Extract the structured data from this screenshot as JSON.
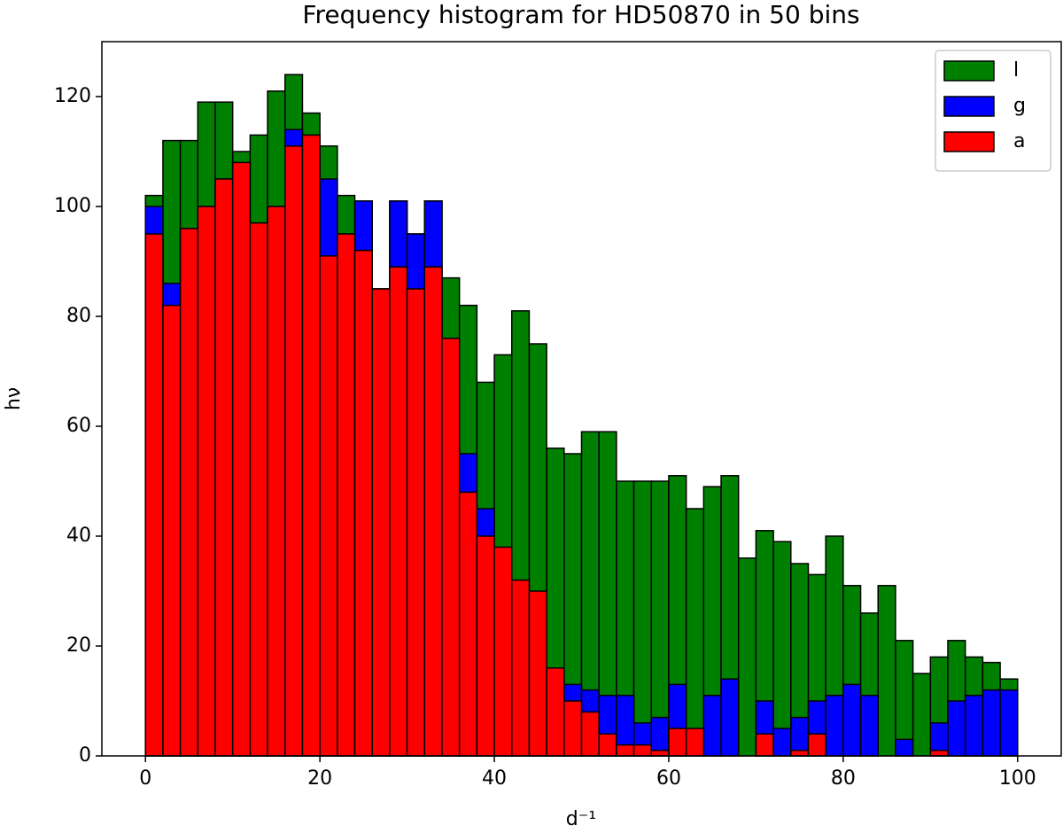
{
  "chart_data": {
    "type": "histogram",
    "title": "Frequency histogram for HD50870 in 50 bins",
    "x_label": "d⁻¹",
    "y_label": "hν",
    "bins": [
      0,
      2,
      4,
      6,
      8,
      10,
      12,
      14,
      16,
      18,
      20,
      22,
      24,
      26,
      28,
      30,
      32,
      34,
      36,
      38,
      40,
      42,
      44,
      46,
      48,
      50,
      52,
      54,
      56,
      58,
      60,
      62,
      64,
      66,
      68,
      70,
      72,
      74,
      76,
      78,
      80,
      82,
      84,
      86,
      88,
      90,
      92,
      94,
      96,
      98,
      100
    ],
    "series": [
      {
        "name": "l",
        "color": "#008000",
        "values": [
          102,
          112,
          112,
          119,
          119,
          110,
          113,
          121,
          124,
          117,
          111,
          102,
          101,
          85,
          101,
          95,
          101,
          87,
          82,
          68,
          73,
          81,
          75,
          56,
          55,
          59,
          59,
          50,
          50,
          50,
          51,
          45,
          49,
          51,
          36,
          41,
          39,
          35,
          33,
          40,
          31,
          26,
          31,
          21,
          15,
          18,
          21,
          18,
          17,
          14
        ]
      },
      {
        "name": "g",
        "color": "#0000ff",
        "values": [
          100,
          86,
          96,
          100,
          105,
          108,
          97,
          100,
          114,
          113,
          105,
          95,
          101,
          85,
          101,
          95,
          101,
          76,
          55,
          45,
          37,
          30,
          13,
          15,
          13,
          12,
          11,
          11,
          6,
          7,
          13,
          0,
          11,
          14,
          0,
          10,
          5,
          7,
          10,
          11,
          13,
          11,
          0,
          3,
          0,
          6,
          10,
          11,
          12,
          12
        ]
      },
      {
        "name": "a",
        "color": "#ff0000",
        "values": [
          95,
          82,
          96,
          100,
          105,
          108,
          97,
          100,
          111,
          113,
          91,
          95,
          92,
          85,
          89,
          85,
          89,
          76,
          48,
          40,
          38,
          32,
          30,
          16,
          10,
          8,
          4,
          2,
          2,
          1,
          5,
          5,
          0,
          0,
          0,
          4,
          0,
          1,
          4,
          0,
          0,
          0,
          0,
          0,
          0,
          1,
          0,
          0,
          0,
          0
        ]
      }
    ],
    "xlim": [
      -5,
      105
    ],
    "ylim": [
      0,
      130
    ],
    "xticks": [
      0,
      20,
      40,
      60,
      80,
      100
    ],
    "yticks": [
      0,
      20,
      40,
      60,
      80,
      100,
      120
    ],
    "grid": false,
    "legend": "upper right"
  }
}
